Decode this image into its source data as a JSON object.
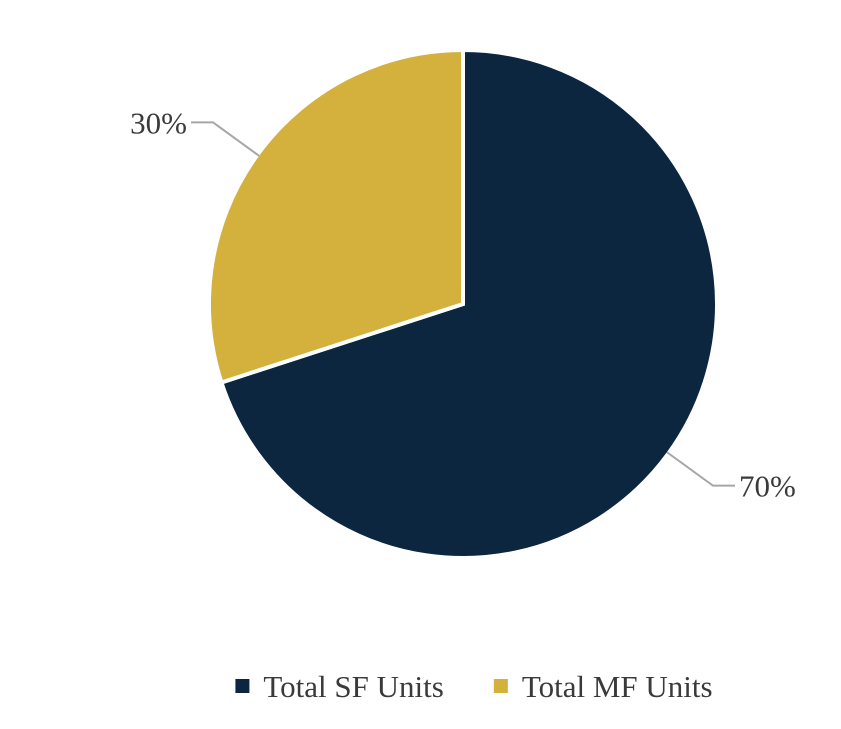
{
  "chart_data": {
    "type": "pie",
    "title": "",
    "categories": [
      "Total SF Units",
      "Total MF Units"
    ],
    "values": [
      70,
      30
    ],
    "data_labels": [
      "70%",
      "30%"
    ],
    "colors": [
      "#0c2640",
      "#d4b13d"
    ],
    "start_angle_deg": 0,
    "direction": "clockwise",
    "legend": {
      "placement": "bottom",
      "entries": [
        "Total SF Units",
        "Total MF Units"
      ]
    }
  }
}
